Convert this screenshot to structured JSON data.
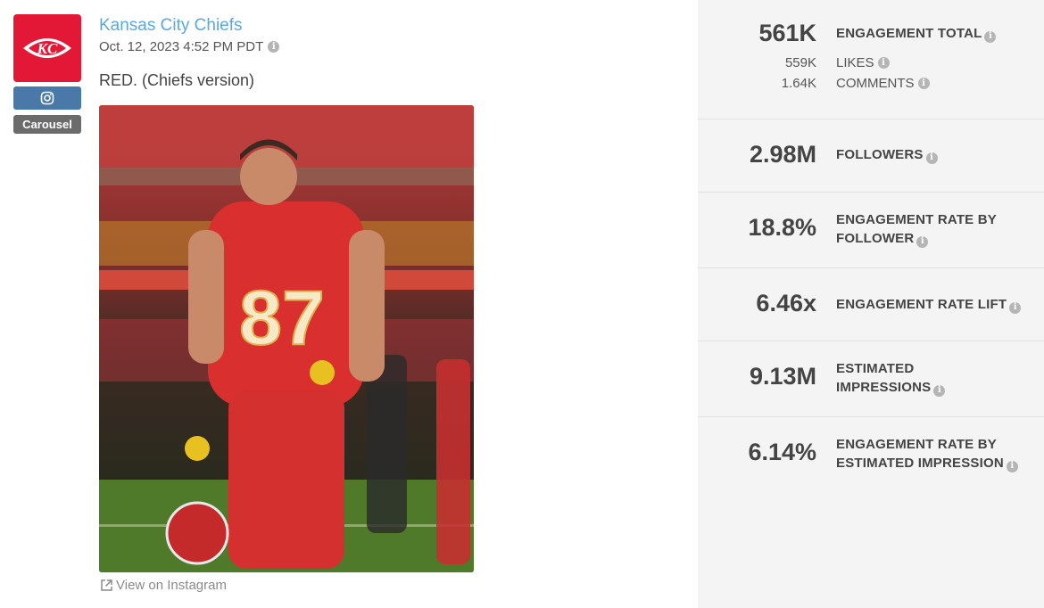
{
  "post": {
    "account_name": "Kansas City Chiefs",
    "timestamp": "Oct. 12, 2023 4:52 PM PDT",
    "caption": "RED. (Chiefs version)",
    "platform_icon": "instagram-icon",
    "post_type": "Carousel",
    "view_link": "View on Instagram",
    "jersey_number": "87"
  },
  "metrics": {
    "engagement_total": {
      "value": "561K",
      "label": "ENGAGEMENT TOTAL"
    },
    "likes": {
      "value": "559K",
      "label": "LIKES"
    },
    "comments": {
      "value": "1.64K",
      "label": "COMMENTS"
    },
    "followers": {
      "value": "2.98M",
      "label": "FOLLOWERS"
    },
    "engagement_rate_follower": {
      "value": "18.8%",
      "label_line1": "ENGAGEMENT RATE BY",
      "label_line2": "FOLLOWER"
    },
    "engagement_rate_lift": {
      "value": "6.46x",
      "label": "ENGAGEMENT RATE LIFT"
    },
    "estimated_impressions": {
      "value": "9.13M",
      "label_line1": "ESTIMATED",
      "label_line2": "IMPRESSIONS"
    },
    "engagement_rate_impression": {
      "value": "6.14%",
      "label_line1": "ENGAGEMENT RATE BY",
      "label_line2": "ESTIMATED IMPRESSION"
    }
  },
  "colors": {
    "brand_red": "#e31837",
    "link_blue": "#5aa9dd",
    "panel_bg": "#f4f4f4"
  }
}
